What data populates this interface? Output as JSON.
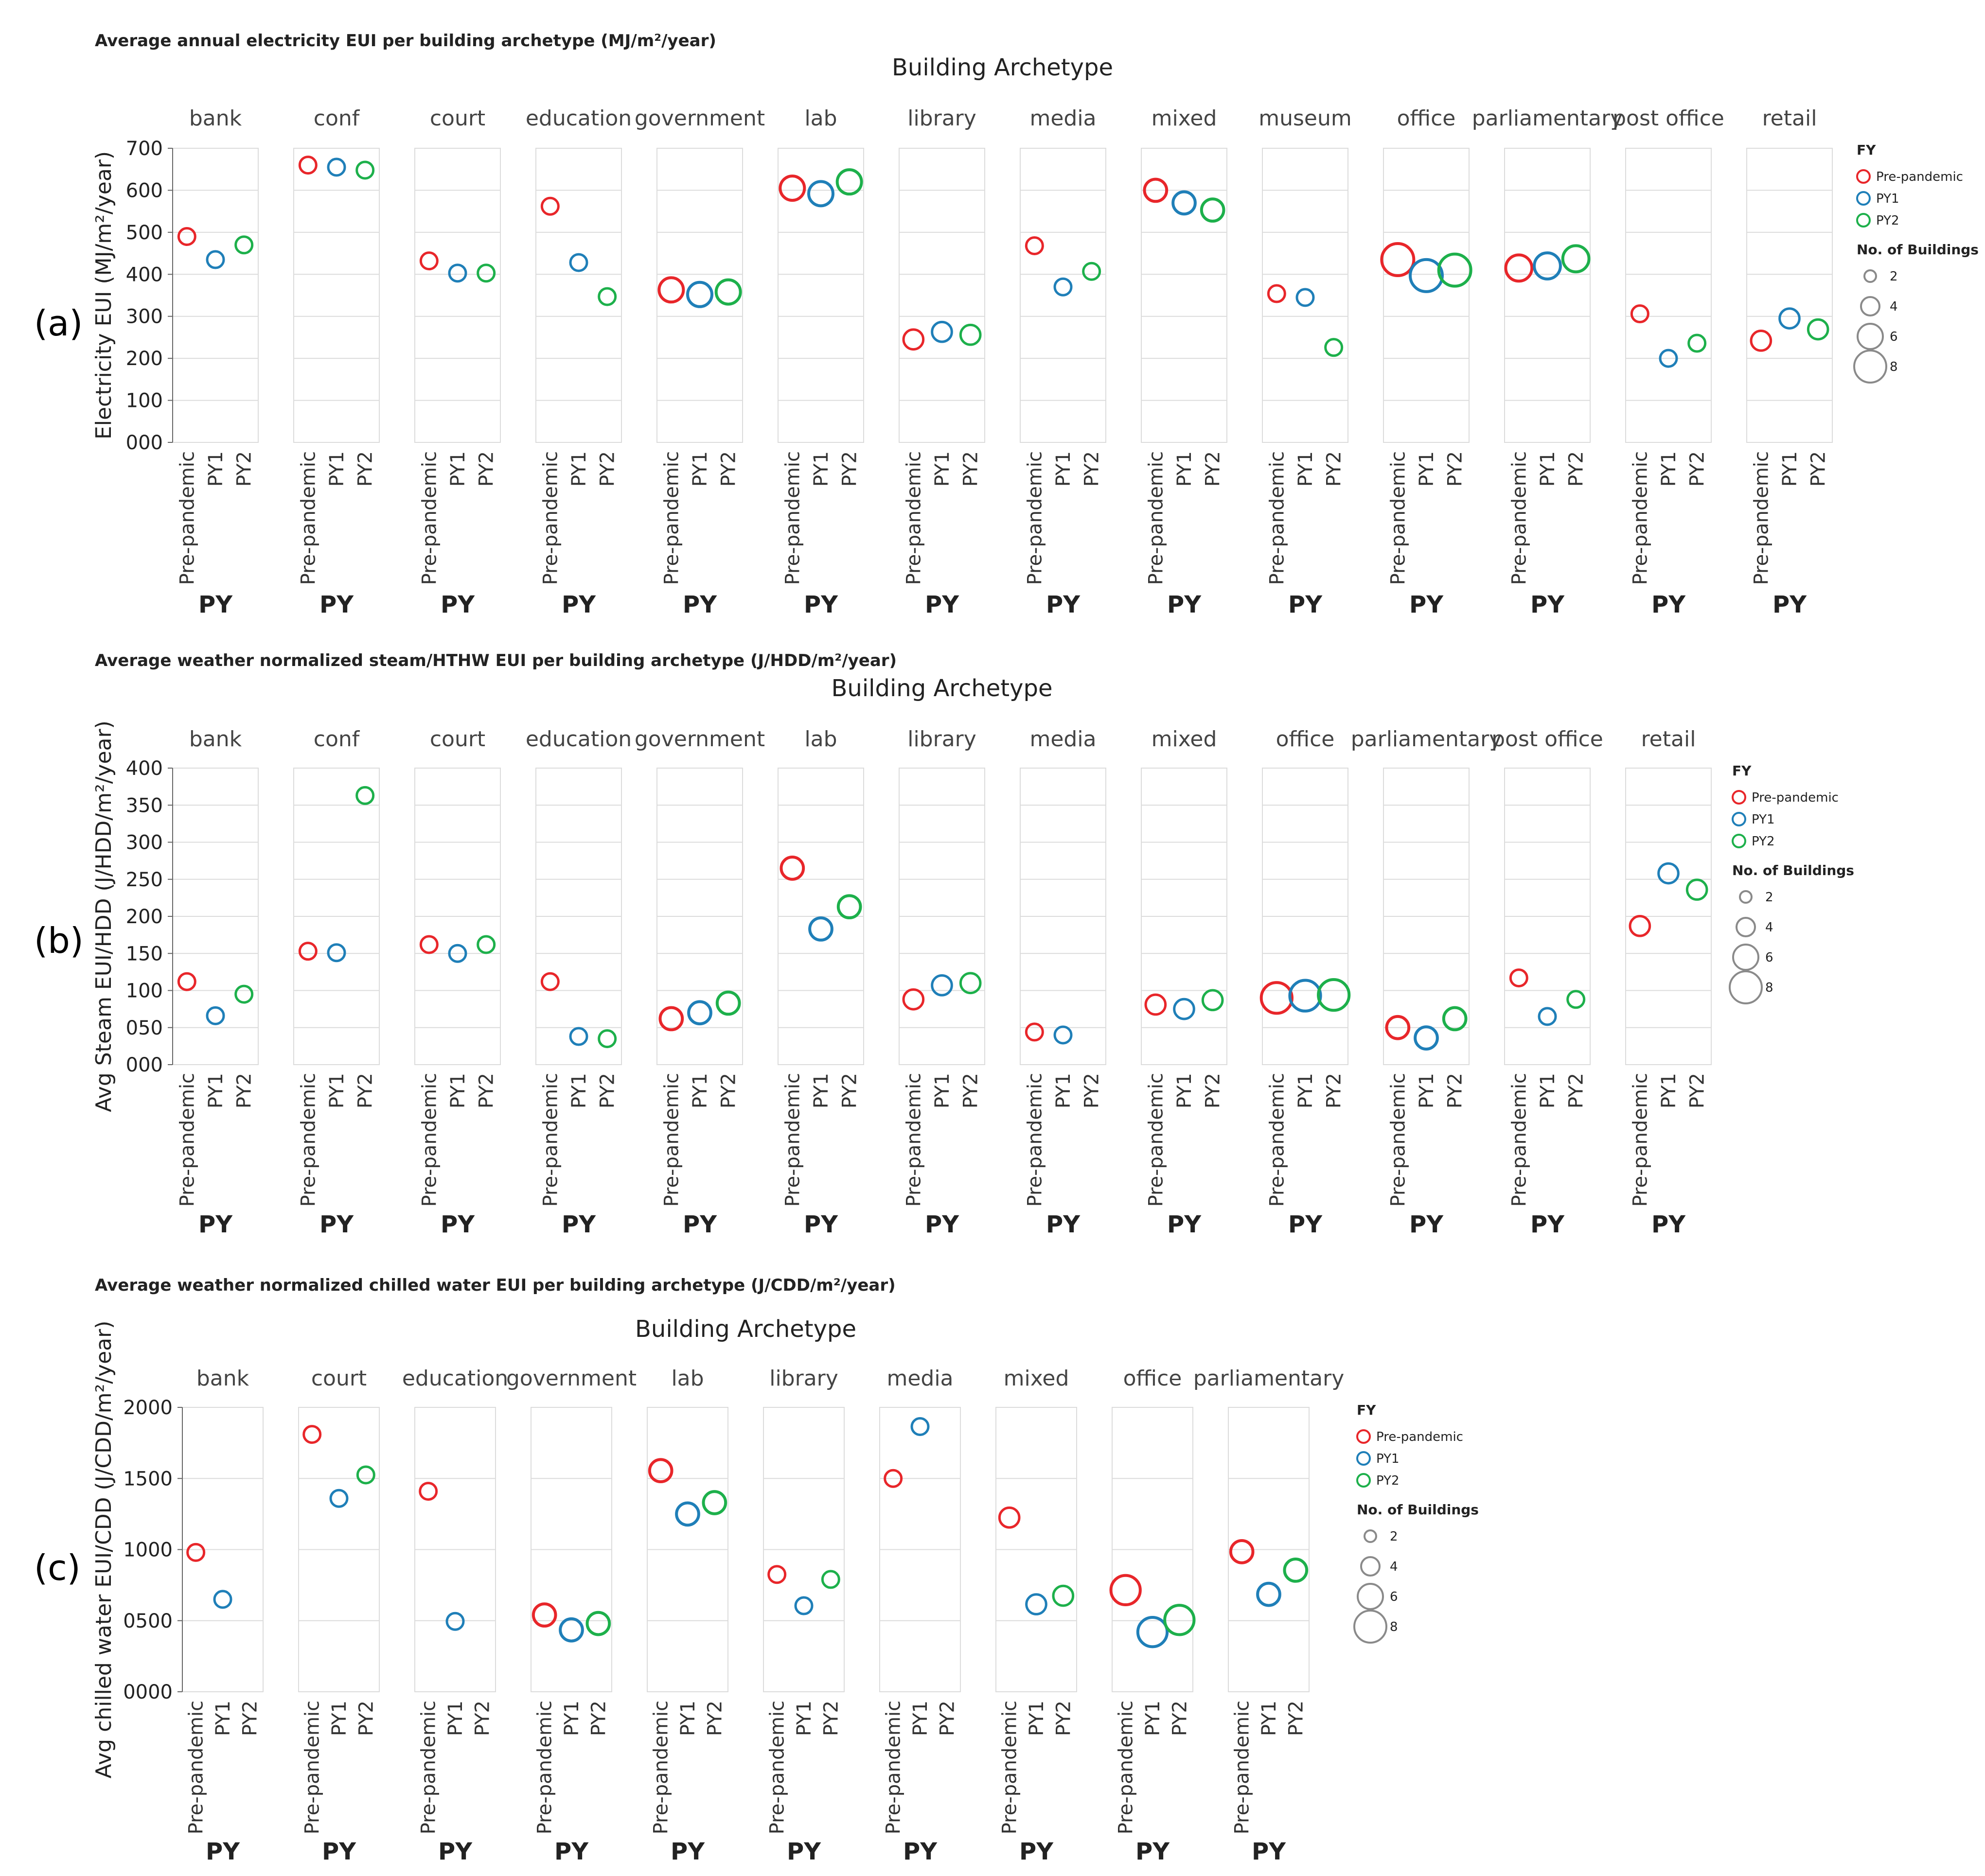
{
  "colors": {
    "Pre-pandemic": "#e8262a",
    "PY1": "#1f7fb8",
    "PY2": "#1db04b",
    "legend_size": "#8a8a8a",
    "grid": "#dcdcdc",
    "text": "#222222"
  },
  "chart_data": [
    {
      "type": "scatter",
      "panel_label": "(a)",
      "title": "Average annual electricity EUI per building archetype (MJ/m²/year)",
      "facet_title": "Building Archetype",
      "xlabel": "PY",
      "ylabel": "Electricity EUI (MJ/m²/year)",
      "ylim": [
        0,
        700
      ],
      "yticks": [
        "000",
        "100",
        "200",
        "300",
        "400",
        "500",
        "600",
        "700"
      ],
      "ytick_values": [
        0,
        100,
        200,
        300,
        400,
        500,
        600,
        700
      ],
      "x_categories": [
        "Pre-pandemic",
        "PY1",
        "PY2"
      ],
      "legend": {
        "color_title": "FY",
        "color_labels": [
          "Pre-pandemic",
          "PY1",
          "PY2"
        ],
        "size_title": "No. of Buildings",
        "size_labels": [
          "2",
          "4",
          "6",
          "8"
        ],
        "size_values": [
          2,
          4,
          6,
          8
        ]
      },
      "facets": [
        {
          "name": "bank",
          "values": [
            490,
            435,
            470
          ],
          "sizes": [
            1,
            1,
            1
          ]
        },
        {
          "name": "conf",
          "values": [
            660,
            655,
            648
          ],
          "sizes": [
            1,
            1,
            1
          ]
        },
        {
          "name": "court",
          "values": [
            432,
            403,
            403
          ],
          "sizes": [
            1,
            1,
            1
          ]
        },
        {
          "name": "education",
          "values": [
            562,
            428,
            347
          ],
          "sizes": [
            1,
            1,
            1
          ]
        },
        {
          "name": "government",
          "values": [
            363,
            352,
            358
          ],
          "sizes": [
            4,
            4,
            4
          ]
        },
        {
          "name": "lab",
          "values": [
            605,
            592,
            620
          ],
          "sizes": [
            4,
            4,
            4
          ]
        },
        {
          "name": "library",
          "values": [
            245,
            263,
            256
          ],
          "sizes": [
            2,
            2,
            2
          ]
        },
        {
          "name": "media",
          "values": [
            468,
            370,
            407
          ],
          "sizes": [
            1,
            1,
            1
          ]
        },
        {
          "name": "mixed",
          "values": [
            600,
            570,
            553
          ],
          "sizes": [
            3,
            3,
            3
          ]
        },
        {
          "name": "museum",
          "values": [
            354,
            345,
            226
          ],
          "sizes": [
            1,
            1,
            1
          ]
        },
        {
          "name": "office",
          "values": [
            435,
            397,
            410
          ],
          "sizes": [
            9,
            9,
            9
          ]
        },
        {
          "name": "parliamentary",
          "values": [
            415,
            420,
            437
          ],
          "sizes": [
            5,
            5,
            5
          ]
        },
        {
          "name": "post office",
          "values": [
            306,
            200,
            236
          ],
          "sizes": [
            1,
            1,
            1
          ]
        },
        {
          "name": "retail",
          "values": [
            242,
            295,
            269
          ],
          "sizes": [
            2,
            2,
            2
          ]
        }
      ]
    },
    {
      "type": "scatter",
      "panel_label": "(b)",
      "title": "Average weather normalized steam/HTHW EUI per building archetype (J/HDD/m²/year)",
      "facet_title": "Building Archetype",
      "xlabel": "PY",
      "ylabel": "Avg Steam EUI/HDD (J/HDD/m²/year)",
      "ylim": [
        0,
        400
      ],
      "yticks": [
        "000",
        "050",
        "100",
        "150",
        "200",
        "250",
        "300",
        "350",
        "400"
      ],
      "ytick_values": [
        0,
        50,
        100,
        150,
        200,
        250,
        300,
        350,
        400
      ],
      "x_categories": [
        "Pre-pandemic",
        "PY1",
        "PY2"
      ],
      "legend": {
        "color_title": "FY",
        "color_labels": [
          "Pre-pandemic",
          "PY1",
          "PY2"
        ],
        "size_title": "No. of Buildings",
        "size_labels": [
          "2",
          "4",
          "6",
          "8"
        ],
        "size_values": [
          2,
          4,
          6,
          8
        ]
      },
      "facets": [
        {
          "name": "bank",
          "values": [
            112,
            66,
            95
          ],
          "sizes": [
            1,
            1,
            1
          ]
        },
        {
          "name": "conf",
          "values": [
            153,
            151,
            363
          ],
          "sizes": [
            1,
            1,
            1
          ]
        },
        {
          "name": "court",
          "values": [
            162,
            150,
            162
          ],
          "sizes": [
            1,
            1,
            1
          ]
        },
        {
          "name": "education",
          "values": [
            112,
            38,
            35
          ],
          "sizes": [
            1,
            1,
            1
          ]
        },
        {
          "name": "government",
          "values": [
            62,
            70,
            83
          ],
          "sizes": [
            3,
            3,
            3
          ]
        },
        {
          "name": "lab",
          "values": [
            265,
            183,
            213
          ],
          "sizes": [
            3,
            3,
            3
          ]
        },
        {
          "name": "library",
          "values": [
            88,
            107,
            110
          ],
          "sizes": [
            2,
            2,
            2
          ]
        },
        {
          "name": "media",
          "values": [
            44,
            40,
            null
          ],
          "sizes": [
            1,
            1,
            1
          ]
        },
        {
          "name": "mixed",
          "values": [
            81,
            75,
            87
          ],
          "sizes": [
            2,
            2,
            2
          ]
        },
        {
          "name": "office",
          "values": [
            90,
            93,
            94
          ],
          "sizes": [
            8,
            8,
            8
          ]
        },
        {
          "name": "parliamentary",
          "values": [
            50,
            36,
            62
          ],
          "sizes": [
            3,
            3,
            3
          ]
        },
        {
          "name": "post office",
          "values": [
            117,
            65,
            88
          ],
          "sizes": [
            1,
            1,
            1
          ]
        },
        {
          "name": "retail",
          "values": [
            187,
            258,
            236
          ],
          "sizes": [
            2,
            2,
            2
          ]
        }
      ]
    },
    {
      "type": "scatter",
      "panel_label": "(c)",
      "title": "Average weather normalized chilled water EUI per building archetype (J/CDD/m²/year)",
      "facet_title": "Building Archetype",
      "xlabel": "PY",
      "ylabel": "Avg chilled water EUI/CDD (J/CDD/m²/year)",
      "ylim": [
        0,
        2000
      ],
      "yticks": [
        "0000",
        "0500",
        "1000",
        "1500",
        "2000"
      ],
      "ytick_values": [
        0,
        500,
        1000,
        1500,
        2000
      ],
      "x_categories": [
        "Pre-pandemic",
        "PY1",
        "PY2"
      ],
      "legend": {
        "color_title": "FY",
        "color_labels": [
          "Pre-pandemic",
          "PY1",
          "PY2"
        ],
        "size_title": "No. of Buildings",
        "size_labels": [
          "2",
          "4",
          "6",
          "8"
        ],
        "size_values": [
          2,
          4,
          6,
          8
        ]
      },
      "facets": [
        {
          "name": "bank",
          "values": [
            980,
            650,
            null
          ],
          "sizes": [
            1,
            1,
            1
          ]
        },
        {
          "name": "court",
          "values": [
            1810,
            1360,
            1525
          ],
          "sizes": [
            1,
            1,
            1
          ]
        },
        {
          "name": "education",
          "values": [
            1410,
            495,
            null
          ],
          "sizes": [
            1,
            1,
            1
          ]
        },
        {
          "name": "government",
          "values": [
            540,
            435,
            480
          ],
          "sizes": [
            3,
            3,
            3
          ]
        },
        {
          "name": "lab",
          "values": [
            1555,
            1250,
            1330
          ],
          "sizes": [
            3,
            3,
            3
          ]
        },
        {
          "name": "library",
          "values": [
            825,
            605,
            790
          ],
          "sizes": [
            1,
            1,
            1
          ]
        },
        {
          "name": "media",
          "values": [
            1500,
            1865,
            null
          ],
          "sizes": [
            1,
            1,
            1
          ]
        },
        {
          "name": "mixed",
          "values": [
            1225,
            615,
            675
          ],
          "sizes": [
            2,
            2,
            2
          ]
        },
        {
          "name": "office",
          "values": [
            715,
            420,
            505
          ],
          "sizes": [
            7,
            7,
            7
          ]
        },
        {
          "name": "parliamentary",
          "values": [
            985,
            685,
            855
          ],
          "sizes": [
            3,
            3,
            3
          ]
        }
      ]
    }
  ]
}
